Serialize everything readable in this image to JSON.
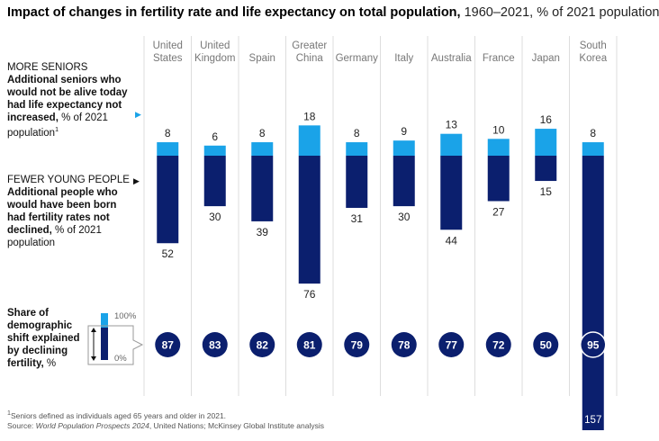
{
  "title": {
    "bold": "Impact of changes in fertility rate and life expectancy on total population,",
    "rest": " 1960–2021, % of 2021 population"
  },
  "seniors_label": {
    "caps": "MORE SENIORS",
    "bold": "Additional seniors who would not be alive today had life expectancy not increased,",
    "rest": " % of 2021 population",
    "sup": "1"
  },
  "young_label": {
    "caps": "FEWER YOUNG PEOPLE",
    "bold": "Additional people who would have been born had fertility rates not declined,",
    "rest": " % of 2021 population"
  },
  "share_label": {
    "bold": "Share of demographic shift explained by declining fertility,",
    "rest": " %",
    "legend_top": "100%",
    "legend_bottom": "0%"
  },
  "footnote": {
    "note": "Seniors defined as individuals aged 65 years and older in 2021.",
    "note_sup": "1",
    "source_prefix": "Source: ",
    "source_italic": "World Population Prospects 2024",
    "source_rest": ", United Nations; McKinsey Global Institute analysis"
  },
  "colors": {
    "seniors": "#1aa3e8",
    "young": "#0b1f6e",
    "gridline": "#dddddd"
  },
  "chart_data": {
    "type": "bar",
    "categories": [
      "United States",
      "United Kingdom",
      "Spain",
      "Greater China",
      "Germany",
      "Italy",
      "Australia",
      "France",
      "Japan",
      "South Korea"
    ],
    "series": [
      {
        "name": "MORE SENIORS",
        "values": [
          8,
          6,
          8,
          18,
          8,
          9,
          13,
          10,
          16,
          8
        ]
      },
      {
        "name": "FEWER YOUNG PEOPLE",
        "values": [
          52,
          30,
          39,
          76,
          31,
          30,
          44,
          27,
          15,
          157
        ]
      }
    ],
    "share_fertility": [
      87,
      83,
      82,
      81,
      79,
      78,
      77,
      72,
      50,
      95
    ]
  }
}
